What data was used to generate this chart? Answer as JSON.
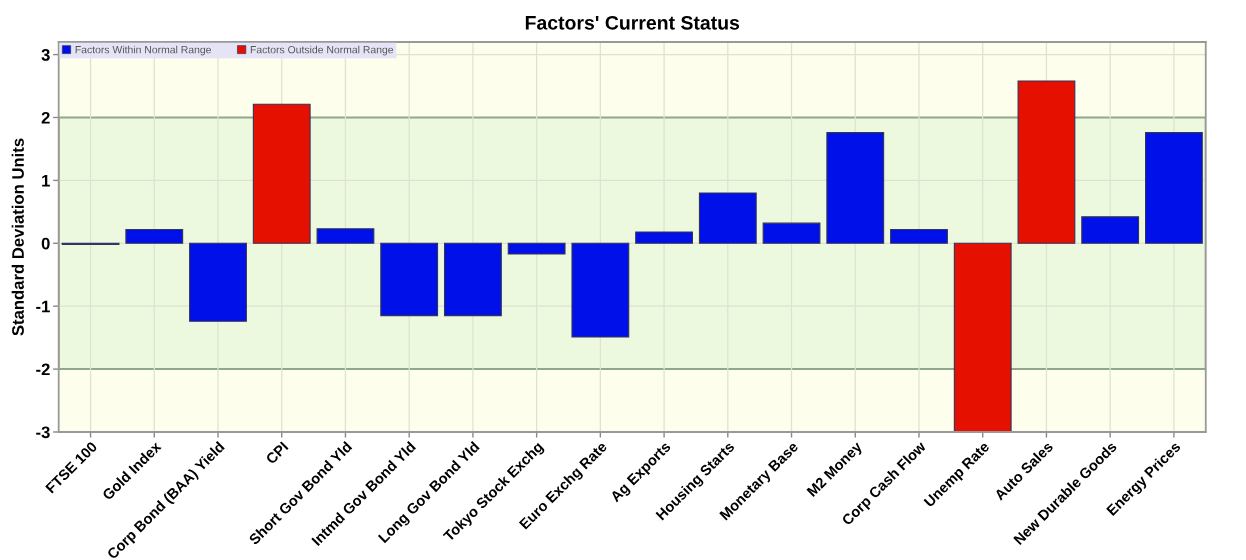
{
  "chart_data": {
    "type": "bar",
    "title": "Factors' Current Status",
    "ylabel": "Standard Deviation Units",
    "categories": [
      "FTSE 100",
      "Gold Index",
      "Corp Bond (BAA) Yield",
      "CPI",
      "Short Gov Bond Yld",
      "Intmd Gov Bond Yld",
      "Long Gov Bond Yld",
      "Tokyo Stock Exchg",
      "Euro Exchg Rate",
      "Ag Exports",
      "Housing Starts",
      "Monetary Base",
      "M2 Money",
      "Corp Cash Flow",
      "Unemp Rate",
      "Auto Sales",
      "New Durable Goods",
      "Energy Prices"
    ],
    "series": [
      {
        "name": "Factors Within Normal Range",
        "color": "#0010e8",
        "values": [
          -0.02,
          0.22,
          -1.24,
          null,
          0.23,
          -1.15,
          -1.15,
          -0.17,
          -1.49,
          0.18,
          0.8,
          0.32,
          1.76,
          0.22,
          null,
          null,
          0.42,
          1.76
        ]
      },
      {
        "name": "Factors Outside Normal Range",
        "color": "#e61000",
        "values": [
          null,
          null,
          null,
          2.21,
          null,
          null,
          null,
          null,
          null,
          null,
          null,
          null,
          null,
          null,
          -3,
          2.58,
          null,
          null
        ]
      }
    ],
    "ylim": [
      -3,
      3.2
    ],
    "yticks": [
      -3,
      -2,
      -1,
      0,
      1,
      2,
      3
    ],
    "grid": true,
    "legend": "top left",
    "bands": [
      {
        "axis": "y",
        "from": -2,
        "to": 2,
        "color": "#edf9de"
      }
    ]
  }
}
